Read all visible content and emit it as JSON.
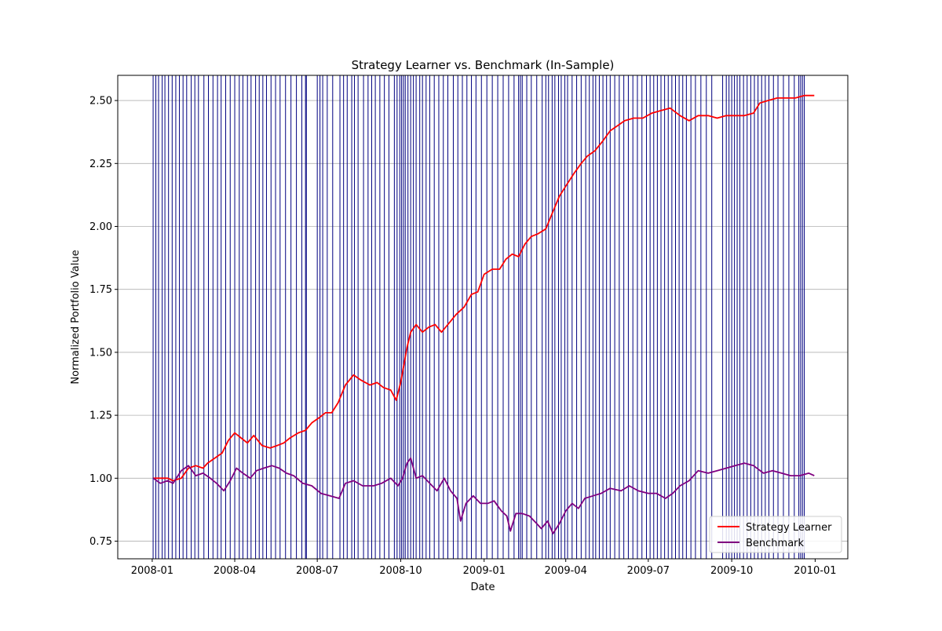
{
  "chart_data": {
    "type": "line",
    "title": "Strategy Learner vs. Benchmark (In-Sample)",
    "xlabel": "Date",
    "ylabel": "Normalized Portfolio Value",
    "xlim": [
      "2007-11-24",
      "2010-02-06"
    ],
    "ylim": [
      0.68,
      2.6
    ],
    "x_ticks": [
      "2008-01",
      "2008-04",
      "2008-07",
      "2008-10",
      "2009-01",
      "2009-04",
      "2009-07",
      "2009-10",
      "2010-01"
    ],
    "y_ticks": [
      "0.75",
      "1.00",
      "1.25",
      "1.50",
      "1.75",
      "2.00",
      "2.25",
      "2.50"
    ],
    "grid": "y",
    "legend_position": "lower-right",
    "series": [
      {
        "name": "Strategy Learner",
        "color": "#ff0000",
        "points": [
          [
            "2008-01-02",
            1.0
          ],
          [
            "2008-01-10",
            1.0
          ],
          [
            "2008-01-18",
            1.0
          ],
          [
            "2008-01-24",
            0.99
          ],
          [
            "2008-02-02",
            1.0
          ],
          [
            "2008-02-10",
            1.04
          ],
          [
            "2008-02-18",
            1.05
          ],
          [
            "2008-02-26",
            1.04
          ],
          [
            "2008-03-02",
            1.06
          ],
          [
            "2008-03-10",
            1.08
          ],
          [
            "2008-03-18",
            1.1
          ],
          [
            "2008-03-25",
            1.15
          ],
          [
            "2008-04-01",
            1.18
          ],
          [
            "2008-04-08",
            1.16
          ],
          [
            "2008-04-15",
            1.14
          ],
          [
            "2008-04-22",
            1.17
          ],
          [
            "2008-05-01",
            1.13
          ],
          [
            "2008-05-10",
            1.12
          ],
          [
            "2008-05-18",
            1.13
          ],
          [
            "2008-05-25",
            1.14
          ],
          [
            "2008-06-01",
            1.16
          ],
          [
            "2008-06-10",
            1.18
          ],
          [
            "2008-06-18",
            1.19
          ],
          [
            "2008-06-25",
            1.22
          ],
          [
            "2008-07-03",
            1.24
          ],
          [
            "2008-07-10",
            1.26
          ],
          [
            "2008-07-17",
            1.26
          ],
          [
            "2008-07-24",
            1.3
          ],
          [
            "2008-08-01",
            1.37
          ],
          [
            "2008-08-10",
            1.41
          ],
          [
            "2008-08-18",
            1.39
          ],
          [
            "2008-08-28",
            1.37
          ],
          [
            "2008-09-05",
            1.38
          ],
          [
            "2008-09-12",
            1.36
          ],
          [
            "2008-09-20",
            1.35
          ],
          [
            "2008-09-26",
            1.31
          ],
          [
            "2008-10-01",
            1.38
          ],
          [
            "2008-10-05",
            1.46
          ],
          [
            "2008-10-08",
            1.52
          ],
          [
            "2008-10-12",
            1.58
          ],
          [
            "2008-10-18",
            1.61
          ],
          [
            "2008-10-25",
            1.58
          ],
          [
            "2008-11-01",
            1.6
          ],
          [
            "2008-11-08",
            1.61
          ],
          [
            "2008-11-15",
            1.58
          ],
          [
            "2008-11-22",
            1.61
          ],
          [
            "2008-12-01",
            1.65
          ],
          [
            "2008-12-10",
            1.68
          ],
          [
            "2008-12-18",
            1.73
          ],
          [
            "2008-12-25",
            1.74
          ],
          [
            "2009-01-01",
            1.81
          ],
          [
            "2009-01-10",
            1.83
          ],
          [
            "2009-01-18",
            1.83
          ],
          [
            "2009-01-25",
            1.87
          ],
          [
            "2009-02-01",
            1.89
          ],
          [
            "2009-02-08",
            1.88
          ],
          [
            "2009-02-15",
            1.93
          ],
          [
            "2009-02-22",
            1.96
          ],
          [
            "2009-03-01",
            1.97
          ],
          [
            "2009-03-10",
            1.99
          ],
          [
            "2009-03-18",
            2.06
          ],
          [
            "2009-03-25",
            2.12
          ],
          [
            "2009-04-01",
            2.16
          ],
          [
            "2009-04-10",
            2.21
          ],
          [
            "2009-04-18",
            2.25
          ],
          [
            "2009-04-25",
            2.28
          ],
          [
            "2009-05-03",
            2.3
          ],
          [
            "2009-05-12",
            2.34
          ],
          [
            "2009-05-20",
            2.38
          ],
          [
            "2009-05-28",
            2.4
          ],
          [
            "2009-06-05",
            2.42
          ],
          [
            "2009-06-15",
            2.43
          ],
          [
            "2009-06-25",
            2.43
          ],
          [
            "2009-07-05",
            2.45
          ],
          [
            "2009-07-15",
            2.46
          ],
          [
            "2009-07-25",
            2.47
          ],
          [
            "2009-08-05",
            2.44
          ],
          [
            "2009-08-15",
            2.42
          ],
          [
            "2009-08-25",
            2.44
          ],
          [
            "2009-09-05",
            2.44
          ],
          [
            "2009-09-15",
            2.43
          ],
          [
            "2009-09-25",
            2.44
          ],
          [
            "2009-10-05",
            2.44
          ],
          [
            "2009-10-15",
            2.44
          ],
          [
            "2009-10-25",
            2.45
          ],
          [
            "2009-11-01",
            2.49
          ],
          [
            "2009-11-10",
            2.5
          ],
          [
            "2009-11-20",
            2.51
          ],
          [
            "2009-12-01",
            2.51
          ],
          [
            "2009-12-10",
            2.51
          ],
          [
            "2009-12-20",
            2.52
          ],
          [
            "2009-12-31",
            2.52
          ]
        ]
      },
      {
        "name": "Benchmark",
        "color": "#800080",
        "points": [
          [
            "2008-01-02",
            1.0
          ],
          [
            "2008-01-10",
            0.98
          ],
          [
            "2008-01-18",
            0.99
          ],
          [
            "2008-01-24",
            0.98
          ],
          [
            "2008-02-02",
            1.03
          ],
          [
            "2008-02-10",
            1.05
          ],
          [
            "2008-02-18",
            1.01
          ],
          [
            "2008-02-26",
            1.02
          ],
          [
            "2008-03-05",
            1.0
          ],
          [
            "2008-03-12",
            0.98
          ],
          [
            "2008-03-20",
            0.95
          ],
          [
            "2008-03-27",
            0.99
          ],
          [
            "2008-04-03",
            1.04
          ],
          [
            "2008-04-10",
            1.02
          ],
          [
            "2008-04-18",
            1.0
          ],
          [
            "2008-04-25",
            1.03
          ],
          [
            "2008-05-03",
            1.04
          ],
          [
            "2008-05-12",
            1.05
          ],
          [
            "2008-05-20",
            1.04
          ],
          [
            "2008-05-28",
            1.02
          ],
          [
            "2008-06-05",
            1.01
          ],
          [
            "2008-06-15",
            0.98
          ],
          [
            "2008-06-25",
            0.97
          ],
          [
            "2008-07-05",
            0.94
          ],
          [
            "2008-07-15",
            0.93
          ],
          [
            "2008-07-25",
            0.92
          ],
          [
            "2008-08-01",
            0.98
          ],
          [
            "2008-08-10",
            0.99
          ],
          [
            "2008-08-20",
            0.97
          ],
          [
            "2008-09-01",
            0.97
          ],
          [
            "2008-09-10",
            0.98
          ],
          [
            "2008-09-20",
            1.0
          ],
          [
            "2008-09-28",
            0.97
          ],
          [
            "2008-10-03",
            1.0
          ],
          [
            "2008-10-08",
            1.06
          ],
          [
            "2008-10-12",
            1.08
          ],
          [
            "2008-10-18",
            1.0
          ],
          [
            "2008-10-25",
            1.01
          ],
          [
            "2008-11-02",
            0.98
          ],
          [
            "2008-11-10",
            0.95
          ],
          [
            "2008-11-18",
            1.0
          ],
          [
            "2008-11-25",
            0.95
          ],
          [
            "2008-12-02",
            0.92
          ],
          [
            "2008-12-06",
            0.83
          ],
          [
            "2008-12-12",
            0.9
          ],
          [
            "2008-12-20",
            0.93
          ],
          [
            "2008-12-28",
            0.9
          ],
          [
            "2009-01-05",
            0.9
          ],
          [
            "2009-01-12",
            0.91
          ],
          [
            "2009-01-20",
            0.87
          ],
          [
            "2009-01-26",
            0.85
          ],
          [
            "2009-01-30",
            0.79
          ],
          [
            "2009-02-05",
            0.86
          ],
          [
            "2009-02-12",
            0.86
          ],
          [
            "2009-02-20",
            0.85
          ],
          [
            "2009-02-28",
            0.82
          ],
          [
            "2009-03-05",
            0.8
          ],
          [
            "2009-03-12",
            0.83
          ],
          [
            "2009-03-18",
            0.78
          ],
          [
            "2009-03-25",
            0.82
          ],
          [
            "2009-04-01",
            0.87
          ],
          [
            "2009-04-08",
            0.9
          ],
          [
            "2009-04-15",
            0.88
          ],
          [
            "2009-04-22",
            0.92
          ],
          [
            "2009-05-01",
            0.93
          ],
          [
            "2009-05-10",
            0.94
          ],
          [
            "2009-05-20",
            0.96
          ],
          [
            "2009-06-01",
            0.95
          ],
          [
            "2009-06-10",
            0.97
          ],
          [
            "2009-06-20",
            0.95
          ],
          [
            "2009-07-01",
            0.94
          ],
          [
            "2009-07-10",
            0.94
          ],
          [
            "2009-07-20",
            0.92
          ],
          [
            "2009-07-28",
            0.94
          ],
          [
            "2009-08-05",
            0.97
          ],
          [
            "2009-08-15",
            0.99
          ],
          [
            "2009-08-25",
            1.03
          ],
          [
            "2009-09-05",
            1.02
          ],
          [
            "2009-09-15",
            1.03
          ],
          [
            "2009-09-25",
            1.04
          ],
          [
            "2009-10-05",
            1.05
          ],
          [
            "2009-10-15",
            1.06
          ],
          [
            "2009-10-25",
            1.05
          ],
          [
            "2009-11-05",
            1.02
          ],
          [
            "2009-11-15",
            1.03
          ],
          [
            "2009-11-25",
            1.02
          ],
          [
            "2009-12-05",
            1.01
          ],
          [
            "2009-12-15",
            1.01
          ],
          [
            "2009-12-25",
            1.02
          ],
          [
            "2009-12-31",
            1.01
          ]
        ]
      }
    ],
    "vertical_lines": {
      "color": "#000080",
      "dates": [
        "2008-01-02",
        "2008-01-05",
        "2008-01-08",
        "2008-01-12",
        "2008-01-15",
        "2008-01-19",
        "2008-01-23",
        "2008-01-27",
        "2008-01-31",
        "2008-02-04",
        "2008-02-08",
        "2008-02-13",
        "2008-02-17",
        "2008-02-21",
        "2008-02-27",
        "2008-03-03",
        "2008-03-08",
        "2008-03-13",
        "2008-03-17",
        "2008-03-22",
        "2008-03-27",
        "2008-04-01",
        "2008-04-06",
        "2008-04-10",
        "2008-04-15",
        "2008-04-19",
        "2008-04-24",
        "2008-04-28",
        "2008-05-02",
        "2008-05-06",
        "2008-05-11",
        "2008-05-16",
        "2008-05-21",
        "2008-05-27",
        "2008-06-02",
        "2008-06-08",
        "2008-06-14",
        "2008-06-18",
        "2008-06-19",
        "2008-07-01",
        "2008-07-04",
        "2008-07-07",
        "2008-07-12",
        "2008-07-18",
        "2008-07-26",
        "2008-07-30",
        "2008-08-03",
        "2008-08-08",
        "2008-08-11",
        "2008-08-15",
        "2008-08-21",
        "2008-08-26",
        "2008-08-30",
        "2008-09-03",
        "2008-09-08",
        "2008-09-13",
        "2008-09-18",
        "2008-09-24",
        "2008-09-27",
        "2008-09-30",
        "2008-10-02",
        "2008-10-04",
        "2008-10-06",
        "2008-10-09",
        "2008-10-12",
        "2008-10-15",
        "2008-10-18",
        "2008-10-22",
        "2008-10-25",
        "2008-10-29",
        "2008-11-02",
        "2008-11-07",
        "2008-11-12",
        "2008-11-17",
        "2008-11-22",
        "2008-11-28",
        "2008-12-03",
        "2008-12-08",
        "2008-12-13",
        "2008-12-18",
        "2008-12-23",
        "2008-12-29",
        "2009-01-04",
        "2009-01-10",
        "2009-01-16",
        "2009-01-22",
        "2009-01-28",
        "2009-02-03",
        "2009-02-08",
        "2009-02-10",
        "2009-02-12",
        "2009-02-17",
        "2009-02-22",
        "2009-02-28",
        "2009-03-06",
        "2009-03-10",
        "2009-03-13",
        "2009-03-17",
        "2009-03-20",
        "2009-03-24",
        "2009-03-27",
        "2009-03-31",
        "2009-04-03",
        "2009-04-08",
        "2009-04-13",
        "2009-04-18",
        "2009-04-23",
        "2009-04-27",
        "2009-05-01",
        "2009-05-04",
        "2009-05-08",
        "2009-05-12",
        "2009-05-16",
        "2009-05-20",
        "2009-05-25",
        "2009-05-30",
        "2009-06-04",
        "2009-06-09",
        "2009-06-14",
        "2009-06-19",
        "2009-06-24",
        "2009-06-29",
        "2009-07-03",
        "2009-07-07",
        "2009-07-11",
        "2009-07-15",
        "2009-07-19",
        "2009-07-23",
        "2009-07-27",
        "2009-07-31",
        "2009-08-04",
        "2009-08-08",
        "2009-08-12",
        "2009-08-17",
        "2009-08-22",
        "2009-08-28",
        "2009-09-03",
        "2009-09-09",
        "2009-09-21",
        "2009-09-25",
        "2009-09-28",
        "2009-10-01",
        "2009-10-04",
        "2009-10-07",
        "2009-10-10",
        "2009-10-14",
        "2009-10-18",
        "2009-10-22",
        "2009-10-26",
        "2009-10-30",
        "2009-11-03",
        "2009-11-07",
        "2009-11-11",
        "2009-11-16",
        "2009-11-21",
        "2009-11-27",
        "2009-12-03",
        "2009-12-09",
        "2009-12-14",
        "2009-12-16",
        "2009-12-18",
        "2009-12-20"
      ]
    }
  }
}
